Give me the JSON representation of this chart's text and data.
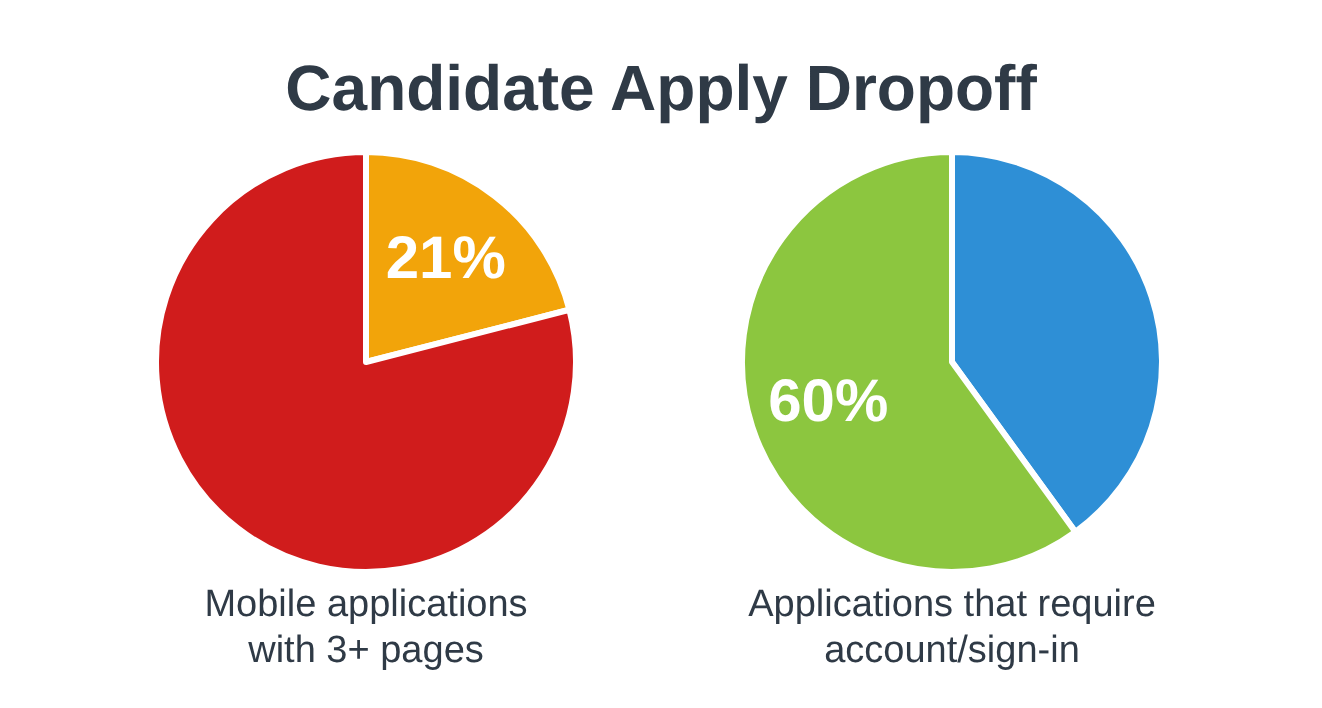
{
  "chart_data": [
    {
      "type": "pie",
      "title": "Candidate Apply Dropoff",
      "xlabel": "Mobile applications\nwith 3+ pages",
      "categories": [
        null,
        null
      ],
      "values": [
        21,
        79
      ],
      "colors": [
        "#f2a40a",
        "#d01c1c"
      ],
      "value_labels": [
        "21%",
        null
      ]
    },
    {
      "type": "pie",
      "xlabel": "Applications that require\naccount/sign-in",
      "categories": [
        null,
        null
      ],
      "values": [
        40,
        60
      ],
      "colors": [
        "#2e8fd6",
        "#8cc63f"
      ],
      "value_labels": [
        null,
        "60%"
      ]
    }
  ]
}
